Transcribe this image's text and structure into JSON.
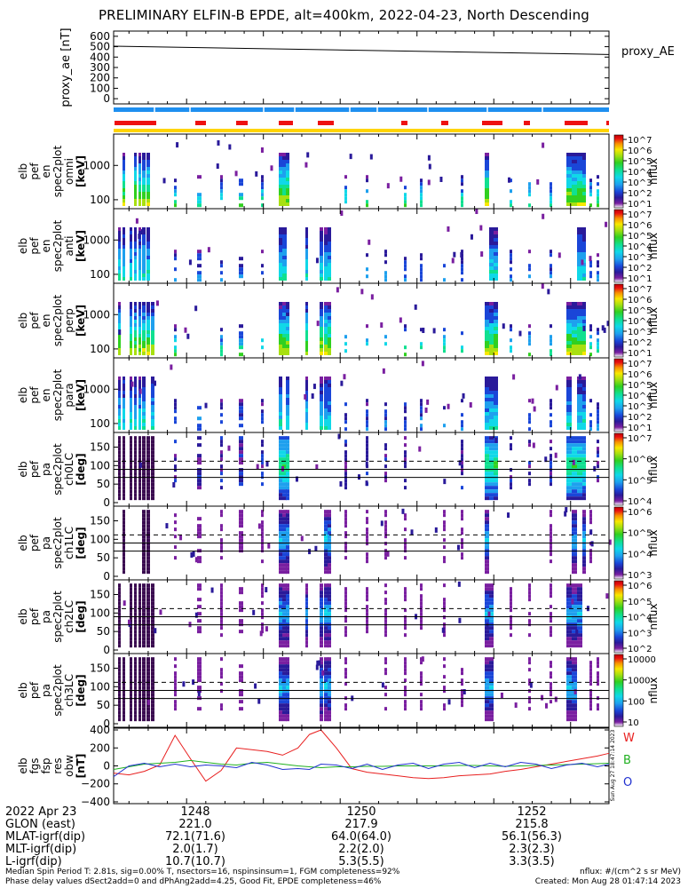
{
  "title": "PRELIMINARY ELFIN-B EPDE, alt=400km, 2022-04-23, North Descending",
  "colors": {
    "bar_blue": "#1e8ff0",
    "bar_red": "#ee1111",
    "bar_yellow": "#ffd400",
    "trace_W": "#e82020",
    "trace_B": "#20b020",
    "trace_O": "#2030d0"
  },
  "chart_data": [
    {
      "type": "line",
      "id": "proxy_ae",
      "ylabel": "proxy_ae [nT]",
      "series_label": "proxy_AE",
      "yticks": [
        "600",
        "500",
        "400",
        "300",
        "200",
        "100",
        "0"
      ],
      "ylim": [
        -50,
        650
      ],
      "x": [
        1247.05,
        1253.5
      ],
      "series": [
        {
          "values": [
            505,
            425
          ]
        }
      ]
    },
    {
      "type": "heatmap",
      "id": "spec_omni",
      "ylabel": [
        "elb",
        "pef",
        "en",
        "spec2plot",
        "omni",
        "[keV]"
      ],
      "yticks": [
        "1000",
        "100"
      ],
      "colorbar": {
        "label": "nflux",
        "ticks": [
          "10^7",
          "10^6",
          "10^5",
          "10^4",
          "10^3",
          "10^2",
          "10^1"
        ]
      }
    },
    {
      "type": "heatmap",
      "id": "spec_anti",
      "ylabel": [
        "elb",
        "pef",
        "en",
        "spec2plot",
        "anti",
        "[keV]"
      ],
      "yticks": [
        "1000",
        "100"
      ],
      "colorbar": {
        "label": "nflux",
        "ticks": [
          "10^7",
          "10^6",
          "10^5",
          "10^4",
          "10^3",
          "10^2",
          "10^1"
        ]
      }
    },
    {
      "type": "heatmap",
      "id": "spec_perp",
      "ylabel": [
        "elb",
        "pef",
        "en",
        "spec2plot",
        "perp",
        "[keV]"
      ],
      "yticks": [
        "1000",
        "100"
      ],
      "colorbar": {
        "label": "nflux",
        "ticks": [
          "10^7",
          "10^6",
          "10^5",
          "10^4",
          "10^3",
          "10^2",
          "10^1"
        ]
      }
    },
    {
      "type": "heatmap",
      "id": "spec_para",
      "ylabel": [
        "elb",
        "pef",
        "en",
        "spec2plot",
        "para",
        "[keV]"
      ],
      "yticks": [
        "1000",
        "100"
      ],
      "colorbar": {
        "label": "nflux",
        "ticks": [
          "10^7",
          "10^6",
          "10^5",
          "10^4",
          "10^3",
          "10^2",
          "10^1"
        ]
      }
    },
    {
      "type": "heatmap",
      "id": "pa_ch0",
      "ylabel": [
        "elb",
        "pef",
        "pa",
        "spec2plot",
        "ch0LC",
        "[deg]"
      ],
      "yticks": [
        "150",
        "100",
        "50",
        "0"
      ],
      "colorbar": {
        "label": "nflux",
        "ticks": [
          "10^7",
          "10^6",
          "10^5",
          "10^4"
        ]
      }
    },
    {
      "type": "heatmap",
      "id": "pa_ch1",
      "ylabel": [
        "elb",
        "pef",
        "pa",
        "spec2plot",
        "ch1LC",
        "[deg]"
      ],
      "yticks": [
        "150",
        "100",
        "50",
        "0"
      ],
      "colorbar": {
        "label": "nflux",
        "ticks": [
          "10^6",
          "10^5",
          "10^4",
          "10^3"
        ]
      }
    },
    {
      "type": "heatmap",
      "id": "pa_ch2",
      "ylabel": [
        "elb",
        "pef",
        "pa",
        "spec2plot",
        "ch2LC",
        "[deg]"
      ],
      "yticks": [
        "150",
        "100",
        "50",
        "0"
      ],
      "colorbar": {
        "label": "nflux",
        "ticks": [
          "10^6",
          "10^5",
          "10^4",
          "10^3",
          "10^2"
        ]
      }
    },
    {
      "type": "heatmap",
      "id": "pa_ch3",
      "ylabel": [
        "elb",
        "pef",
        "pa",
        "spec2plot",
        "ch3LC",
        "[deg]"
      ],
      "yticks": [
        "150",
        "100",
        "50",
        "0"
      ],
      "colorbar": {
        "label": "nflux",
        "ticks": [
          "10000",
          "1000",
          "100",
          "10"
        ]
      }
    },
    {
      "type": "line",
      "id": "fgm",
      "ylabel": [
        "elb",
        "fgs",
        "fsp",
        "res",
        "obw",
        "[nT]"
      ],
      "yticks": [
        "400",
        "200",
        "0",
        "−200",
        "−400"
      ],
      "ylim": [
        -420,
        420
      ],
      "legend": [
        "W",
        "B",
        "O"
      ],
      "stamp": "Sun Aug 27 18:47:14 2023",
      "x": [
        1247.05,
        1247.25,
        1247.45,
        1247.65,
        1247.85,
        1248.05,
        1248.25,
        1248.45,
        1248.65,
        1248.85,
        1249.05,
        1249.25,
        1249.45,
        1249.6,
        1249.75,
        1249.95,
        1250.15,
        1250.35,
        1250.55,
        1250.75,
        1250.95,
        1251.15,
        1251.35,
        1251.55,
        1251.75,
        1251.95,
        1252.15,
        1252.35,
        1252.55,
        1252.75,
        1252.95,
        1253.15,
        1253.35,
        1253.5
      ],
      "series": [
        {
          "name": "W",
          "values": [
            -80,
            -100,
            -60,
            10,
            340,
            80,
            -170,
            -50,
            200,
            180,
            160,
            120,
            200,
            350,
            400,
            200,
            -30,
            -70,
            -90,
            -110,
            -130,
            -140,
            -130,
            -110,
            -100,
            -90,
            -60,
            -40,
            -10,
            20,
            50,
            80,
            110,
            140
          ]
        },
        {
          "name": "B",
          "values": [
            -40,
            -10,
            20,
            30,
            40,
            60,
            40,
            20,
            10,
            30,
            40,
            20,
            0,
            -10,
            -20,
            -10,
            -10,
            -5,
            -5,
            0,
            0,
            0,
            0,
            5,
            5,
            0,
            -5,
            0,
            5,
            10,
            15,
            20,
            25,
            30
          ]
        },
        {
          "name": "O",
          "values": [
            -120,
            0,
            30,
            -10,
            20,
            -10,
            10,
            0,
            -20,
            40,
            10,
            -40,
            -30,
            -40,
            20,
            10,
            -30,
            20,
            -40,
            10,
            30,
            -30,
            20,
            40,
            -20,
            30,
            -10,
            40,
            20,
            -30,
            10,
            30,
            -10,
            20
          ]
        }
      ]
    }
  ],
  "ephemeris": {
    "rows": [
      "2022 Apr 23",
      "GLON (east)",
      "MLAT-igrf(dip)",
      "MLT-igrf(dip)",
      "L-igrf(dip)"
    ],
    "columns": [
      {
        "time": "1248",
        "values": [
          "221.0",
          "72.1(71.6)",
          "2.0(1.7)",
          "10.7(10.7)"
        ]
      },
      {
        "time": "1250",
        "values": [
          "217.9",
          "64.0(64.0)",
          "2.2(2.0)",
          "5.3(5.5)"
        ]
      },
      {
        "time": "1252",
        "values": [
          "215.8",
          "56.1(56.3)",
          "2.3(2.3)",
          "3.3(3.5)"
        ]
      }
    ]
  },
  "footer": {
    "left1": "Median Spin Period T: 2.81s, sig=0.00% T, nsectors=16, nspinsinsum=1, FGM completeness=92%",
    "left2": "Phase delay values dSect2add=0 and dPhAng2add=4.25, Good Fit, EPDE completeness=46%",
    "right1": "nflux: #/(cm^2 s sr MeV)",
    "right2": "Created: Mon Aug 28 01:47:14 2023"
  }
}
